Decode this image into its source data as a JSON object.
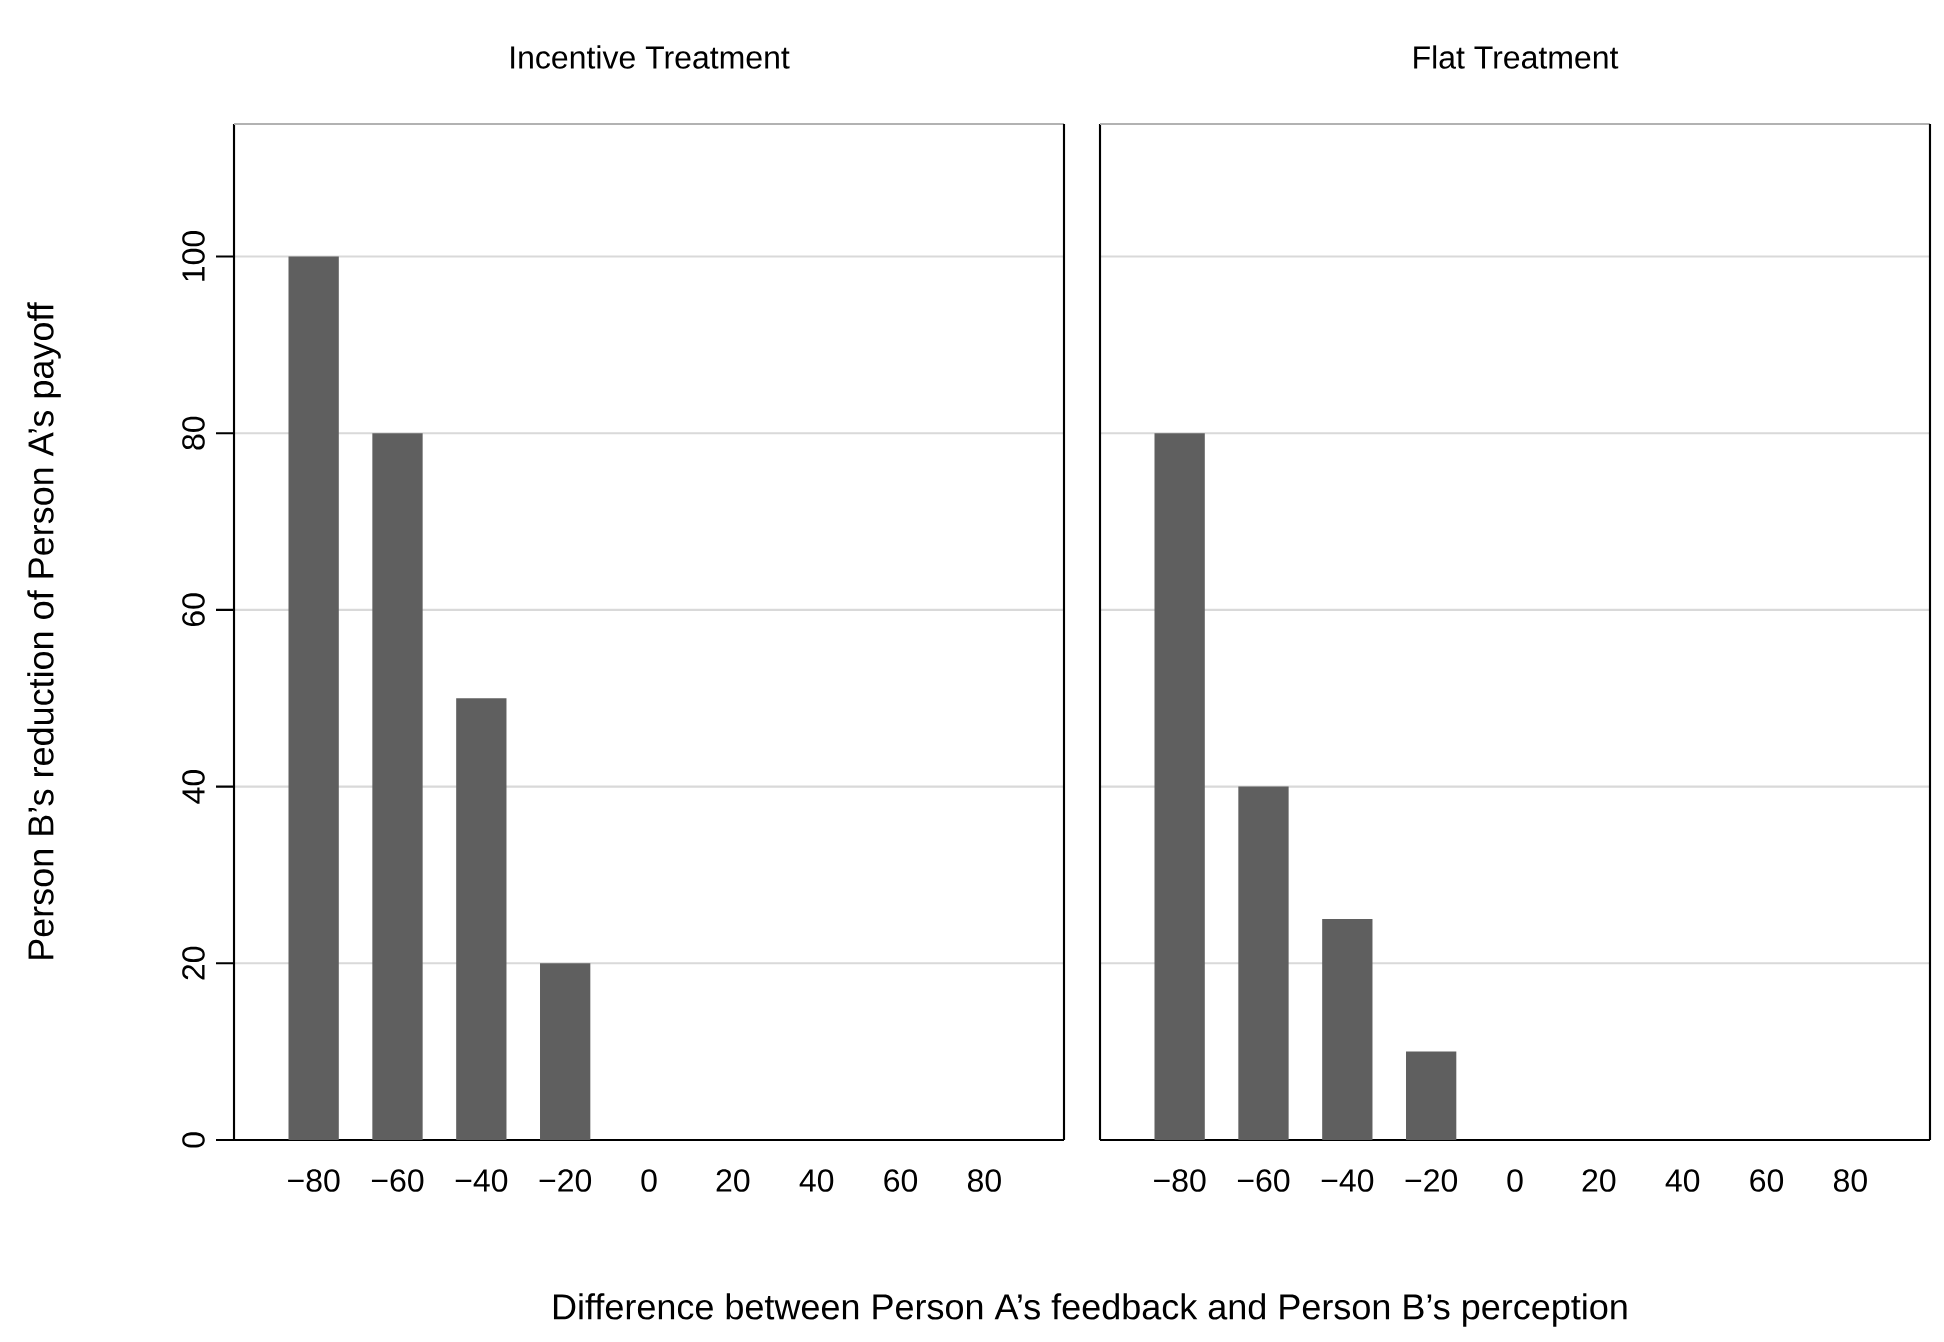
{
  "chart_data": [
    {
      "type": "bar",
      "title": "Incentive Treatment",
      "ylabel": "Person B’s reduction of Person A’s payoff",
      "xlabel": "Difference between Person A’s feedback and Person B’s perception",
      "x": [
        -80,
        -60,
        -40,
        -20,
        0,
        20,
        40,
        60,
        80
      ],
      "values": [
        100,
        80,
        50,
        20,
        0,
        0,
        0,
        0,
        0
      ],
      "color": "#5f5f5f",
      "xlim": [
        -99,
        99
      ],
      "ylim": [
        0,
        115
      ],
      "xticks": [
        {
          "value": -80,
          "label": "−80"
        },
        {
          "value": -60,
          "label": "−60"
        },
        {
          "value": -40,
          "label": "−40"
        },
        {
          "value": -20,
          "label": "−20"
        },
        0,
        20,
        40,
        60,
        80
      ],
      "yticks": [
        0,
        20,
        40,
        60,
        80,
        100
      ],
      "grid": "y"
    },
    {
      "type": "bar",
      "title": "Flat Treatment",
      "x": [
        -80,
        -60,
        -40,
        -20,
        0,
        20,
        40,
        60,
        80
      ],
      "values": [
        80,
        40,
        25,
        10,
        0,
        0,
        0,
        0,
        0
      ],
      "color": "#5f5f5f",
      "xlim": [
        -99,
        99
      ],
      "ylim": [
        0,
        115
      ],
      "xticks": [
        {
          "value": -80,
          "label": "−80"
        },
        {
          "value": -60,
          "label": "−60"
        },
        {
          "value": -40,
          "label": "−40"
        },
        {
          "value": -20,
          "label": "−20"
        },
        0,
        20,
        40,
        60,
        80
      ],
      "yticks": [
        0,
        20,
        40,
        60,
        80,
        100
      ],
      "grid": "y",
      "tick_labels": "x"
    }
  ]
}
